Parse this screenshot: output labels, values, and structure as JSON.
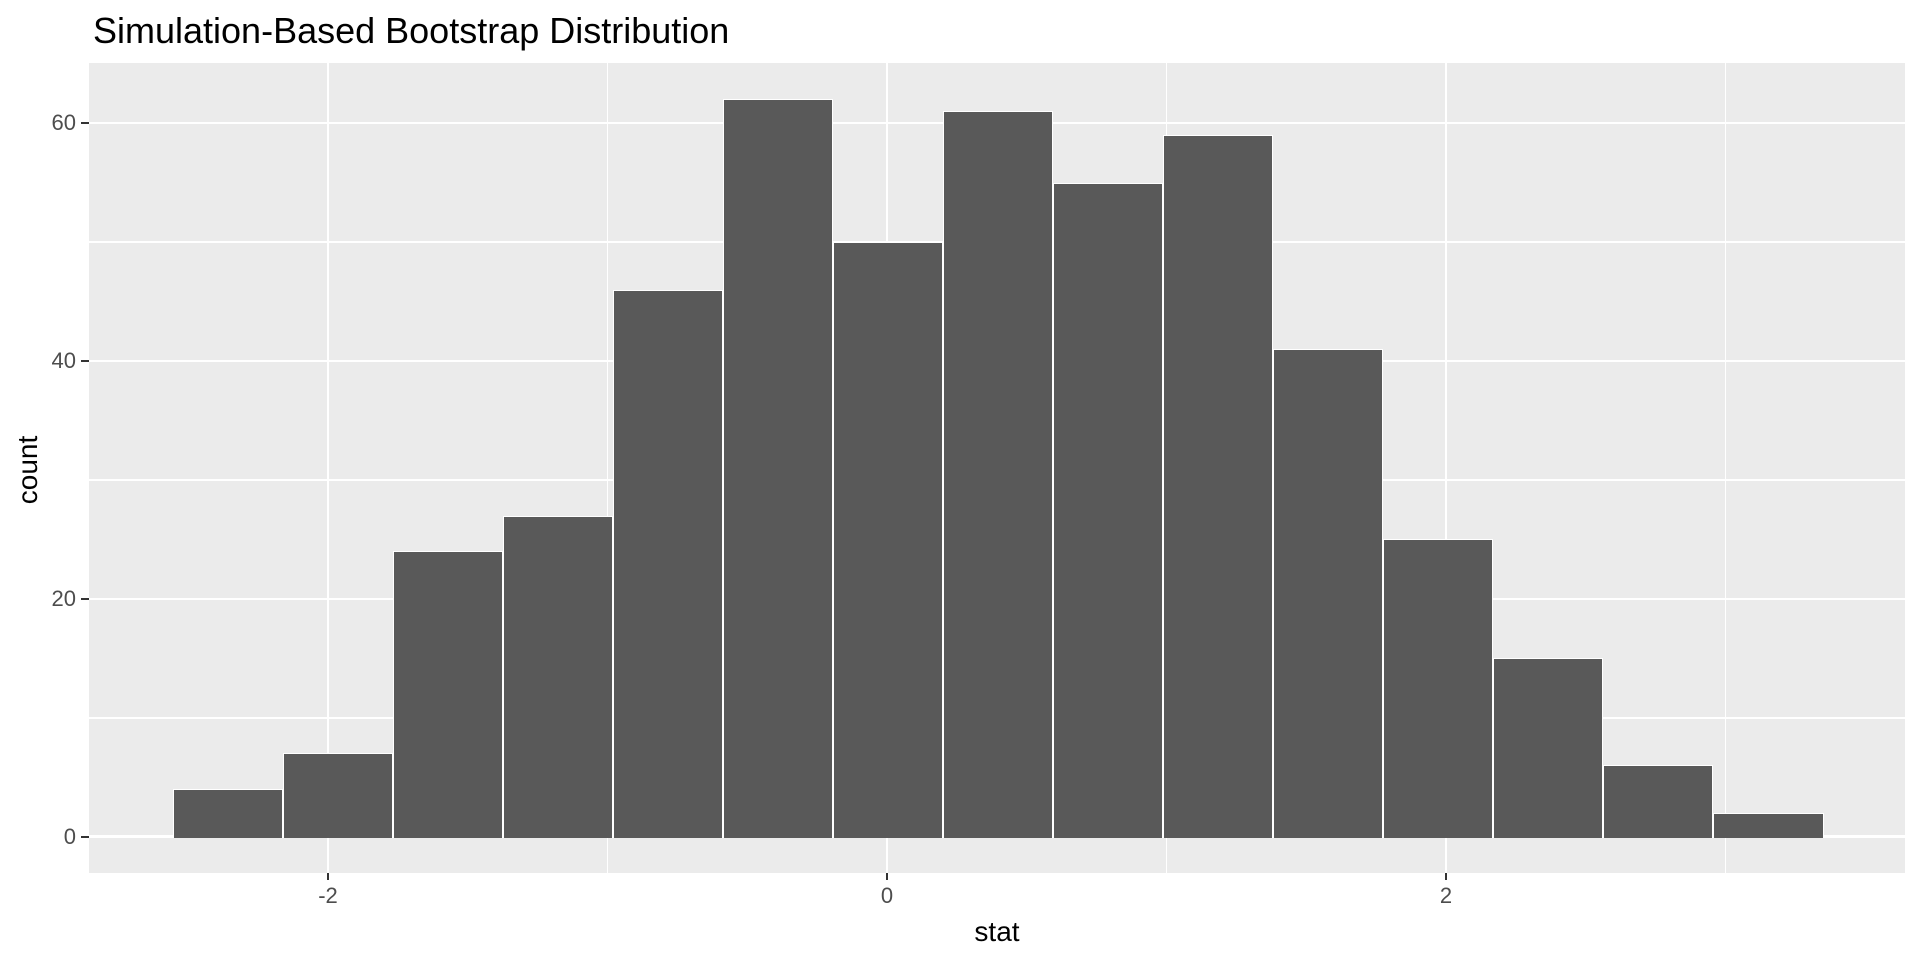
{
  "chart_data": {
    "type": "bar",
    "subtype": "histogram",
    "title": "Simulation-Based Bootstrap Distribution",
    "xlabel": "stat",
    "ylabel": "count",
    "legend": "none",
    "grid": true,
    "bins": {
      "start": -2.555,
      "width": 0.3937
    },
    "counts": [
      4,
      7,
      24,
      27,
      46,
      62,
      50,
      61,
      55,
      59,
      41,
      25,
      15,
      6,
      2
    ],
    "x_axis": {
      "ticks": [
        -2,
        0,
        2
      ],
      "tick_labels": [
        "-2",
        "0",
        "2"
      ],
      "minor": [
        -1,
        1,
        3
      ],
      "lim": [
        -2.855,
        3.642
      ]
    },
    "y_axis": {
      "ticks": [
        0,
        20,
        40,
        60
      ],
      "tick_labels": [
        "0",
        "20",
        "40",
        "60"
      ],
      "minor": [
        10,
        30,
        50
      ],
      "lim": [
        -3.05,
        65.05
      ]
    },
    "colors": {
      "bar_fill": "#595959",
      "bar_border": "#FFFFFF",
      "panel_background": "#EBEBEB",
      "gridline": "#FFFFFF",
      "axis_text": "#4D4D4D",
      "axis_title": "#000000",
      "plot_title": "#000000",
      "tick_mark": "#333333",
      "figure_background": "#FFFFFF"
    }
  }
}
